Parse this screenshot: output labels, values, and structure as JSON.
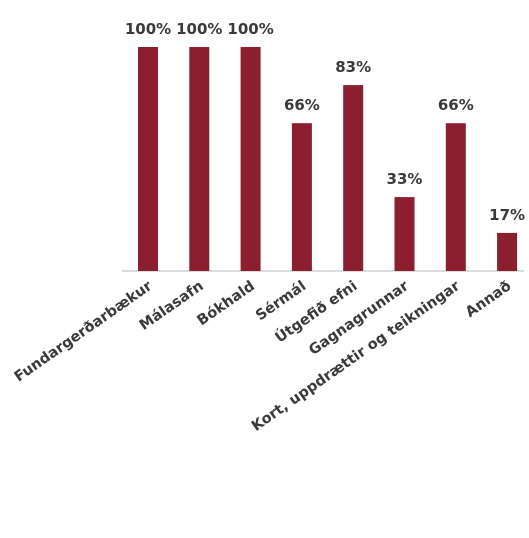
{
  "chart_data": {
    "type": "bar",
    "categories": [
      "Fundargerðarbækur",
      "Málasafn",
      "Bókhald",
      "Sérmál",
      "Útgefið efni",
      "Gagnagrunnar",
      "Kort, uppdrættir og teikningar",
      "Annað"
    ],
    "values": [
      100,
      100,
      100,
      66,
      83,
      33,
      66,
      17
    ],
    "data_labels": [
      "100%",
      "100%",
      "100%",
      "66%",
      "83%",
      "33%",
      "66%",
      "17%"
    ],
    "ylim": [
      0,
      100
    ],
    "grid": false,
    "legend": "none",
    "bar_color": "#8B1E2F",
    "text_color": "#3a3a3a"
  }
}
